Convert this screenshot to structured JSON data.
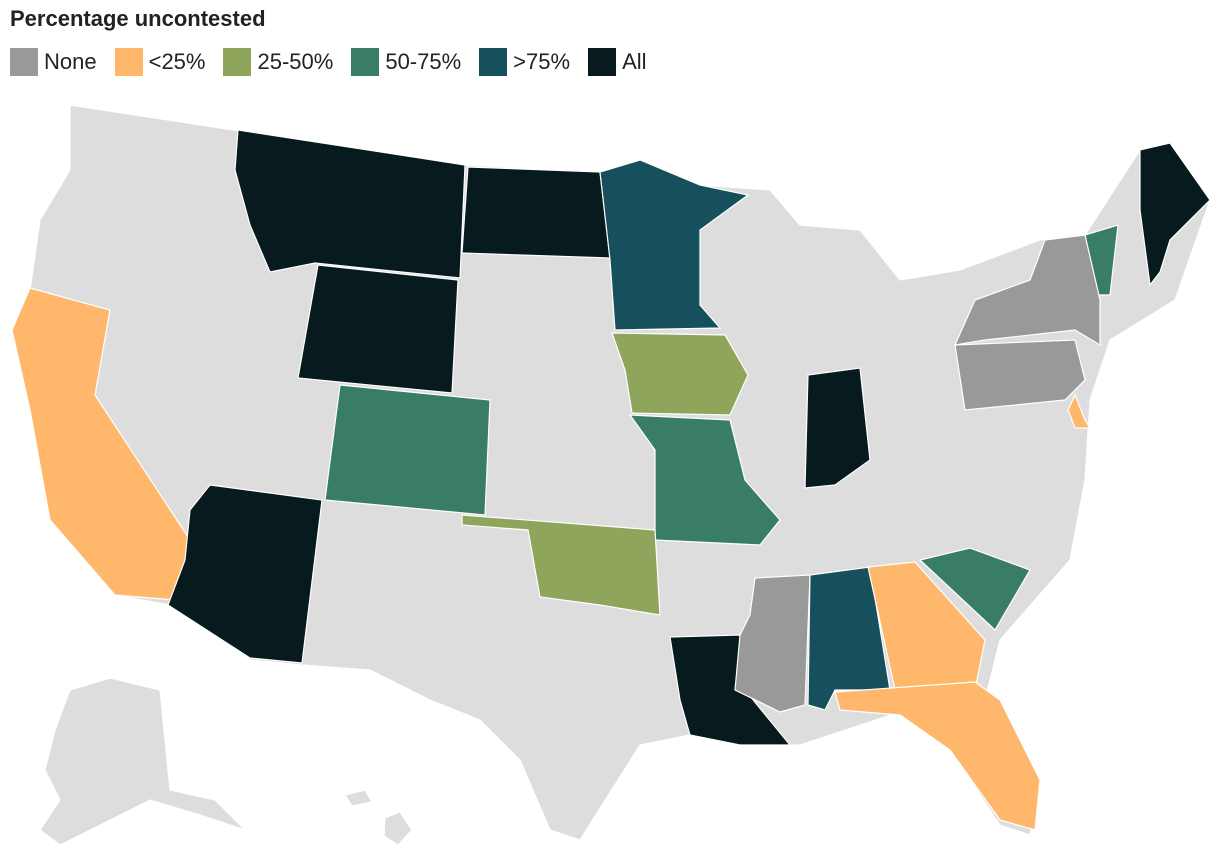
{
  "title": "Percentage uncontested",
  "legend": {
    "items": [
      {
        "label": "None",
        "color": "#999999"
      },
      {
        "label": "<25%",
        "color": "#ffb86b"
      },
      {
        "label": "25-50%",
        "color": "#8fa55b"
      },
      {
        "label": "50-75%",
        "color": "#3a7d66"
      },
      {
        "label": ">75%",
        "color": "#16505c"
      },
      {
        "label": "All",
        "color": "#071a1e"
      }
    ]
  }
}
